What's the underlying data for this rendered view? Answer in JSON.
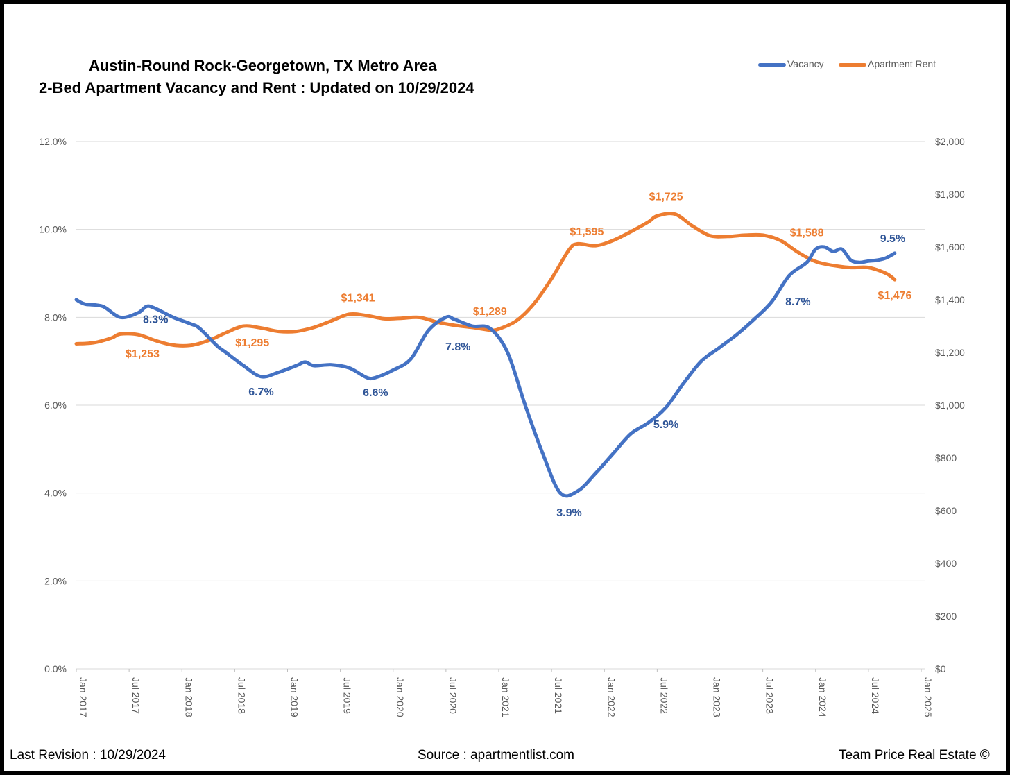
{
  "header": {
    "title_line1": "Austin-Round Rock-Georgetown, TX Metro Area",
    "title_line2": "2-Bed Apartment Vacancy and Rent : Updated on 10/29/2024"
  },
  "footer": {
    "left": "Last Revision : 10/29/2024",
    "center": "Source : apartmentlist.com",
    "right": "Team Price Real Estate ©"
  },
  "colors": {
    "vacancy": "#4472C4",
    "rent": "#ED7D31",
    "vacancy_label": "#2F5597",
    "rent_label": "#ED7D31",
    "axis_text": "#595959",
    "grid": "#D9D9D9"
  },
  "chart_data": {
    "type": "line",
    "legend_position": "top-right",
    "grid": true,
    "x_tick_labels": [
      "Jan 2017",
      "Jul 2017",
      "Jan 2018",
      "Jul 2018",
      "Jan 2019",
      "Jul 2019",
      "Jan 2020",
      "Jul 2020",
      "Jan 2021",
      "Jul 2021",
      "Jan 2022",
      "Jul 2022",
      "Jan 2023",
      "Jul 2023",
      "Jan 2024",
      "Jul 2024",
      "Jan 2025"
    ],
    "y_left": {
      "min": 0,
      "max": 12,
      "tick_labels": [
        "0.0%",
        "2.0%",
        "4.0%",
        "6.0%",
        "8.0%",
        "10.0%",
        "12.0%"
      ]
    },
    "y_right": {
      "min": 0,
      "max": 2000,
      "tick_labels": [
        "$0",
        "$200",
        "$400",
        "$600",
        "$800",
        "$1,000",
        "$1,200",
        "$1,400",
        "$1,600",
        "$1,800",
        "$2,000"
      ]
    },
    "series": [
      {
        "name": "Vacancy",
        "axis": "left",
        "points": [
          [
            "2017-01",
            8.4
          ],
          [
            "2017-02",
            8.3
          ],
          [
            "2017-04",
            8.25
          ],
          [
            "2017-06",
            8.0
          ],
          [
            "2017-08",
            8.1
          ],
          [
            "2017-09",
            8.25
          ],
          [
            "2017-10",
            8.2
          ],
          [
            "2017-12",
            8.0
          ],
          [
            "2018-02",
            7.85
          ],
          [
            "2018-03",
            7.75
          ],
          [
            "2018-05",
            7.35
          ],
          [
            "2018-06",
            7.2
          ],
          [
            "2018-08",
            6.9
          ],
          [
            "2018-10",
            6.65
          ],
          [
            "2018-12",
            6.75
          ],
          [
            "2019-02",
            6.9
          ],
          [
            "2019-03",
            6.98
          ],
          [
            "2019-04",
            6.9
          ],
          [
            "2019-06",
            6.92
          ],
          [
            "2019-08",
            6.85
          ],
          [
            "2019-10",
            6.63
          ],
          [
            "2019-11",
            6.63
          ],
          [
            "2020-01",
            6.8
          ],
          [
            "2020-03",
            7.05
          ],
          [
            "2020-05",
            7.7
          ],
          [
            "2020-07",
            8.0
          ],
          [
            "2020-08",
            7.95
          ],
          [
            "2020-10",
            7.8
          ],
          [
            "2020-12",
            7.75
          ],
          [
            "2021-02",
            7.2
          ],
          [
            "2021-04",
            6.0
          ],
          [
            "2021-06",
            4.9
          ],
          [
            "2021-08",
            4.0
          ],
          [
            "2021-10",
            4.05
          ],
          [
            "2021-12",
            4.45
          ],
          [
            "2022-02",
            4.9
          ],
          [
            "2022-04",
            5.35
          ],
          [
            "2022-06",
            5.6
          ],
          [
            "2022-08",
            5.95
          ],
          [
            "2022-10",
            6.5
          ],
          [
            "2022-12",
            7.0
          ],
          [
            "2023-02",
            7.3
          ],
          [
            "2023-04",
            7.6
          ],
          [
            "2023-06",
            7.95
          ],
          [
            "2023-08",
            8.35
          ],
          [
            "2023-10",
            8.95
          ],
          [
            "2023-12",
            9.25
          ],
          [
            "2024-01",
            9.55
          ],
          [
            "2024-02",
            9.6
          ],
          [
            "2024-03",
            9.5
          ],
          [
            "2024-04",
            9.55
          ],
          [
            "2024-05",
            9.3
          ],
          [
            "2024-06",
            9.25
          ],
          [
            "2024-07",
            9.28
          ],
          [
            "2024-08",
            9.3
          ],
          [
            "2024-09",
            9.35
          ],
          [
            "2024-10",
            9.46
          ]
        ],
        "labels": [
          {
            "x": "2017-10",
            "y": 8.3,
            "text": "8.3%"
          },
          {
            "x": "2018-10",
            "y": 6.65,
            "text": "6.7%"
          },
          {
            "x": "2019-11",
            "y": 6.63,
            "text": "6.6%"
          },
          {
            "x": "2020-09",
            "y": 7.85,
            "text": "7.8%"
          },
          {
            "x": "2021-09",
            "y": 3.95,
            "text": "3.9%"
          },
          {
            "x": "2022-08",
            "y": 5.95,
            "text": "5.9%"
          },
          {
            "x": "2023-11",
            "y": 8.7,
            "text": "8.7%"
          },
          {
            "x": "2024-10",
            "y": 9.46,
            "text": "9.5%"
          }
        ]
      },
      {
        "name": "Apartment Rent",
        "axis": "right",
        "points": [
          [
            "2017-01",
            1233
          ],
          [
            "2017-03",
            1237
          ],
          [
            "2017-05",
            1255
          ],
          [
            "2017-06",
            1270
          ],
          [
            "2017-08",
            1268
          ],
          [
            "2017-10",
            1245
          ],
          [
            "2017-12",
            1228
          ],
          [
            "2018-02",
            1227
          ],
          [
            "2018-04",
            1245
          ],
          [
            "2018-06",
            1275
          ],
          [
            "2018-08",
            1300
          ],
          [
            "2018-10",
            1293
          ],
          [
            "2018-12",
            1280
          ],
          [
            "2019-02",
            1280
          ],
          [
            "2019-04",
            1295
          ],
          [
            "2019-06",
            1320
          ],
          [
            "2019-08",
            1345
          ],
          [
            "2019-10",
            1340
          ],
          [
            "2019-12",
            1328
          ],
          [
            "2020-02",
            1330
          ],
          [
            "2020-04",
            1333
          ],
          [
            "2020-06",
            1315
          ],
          [
            "2020-08",
            1303
          ],
          [
            "2020-10",
            1295
          ],
          [
            "2020-12",
            1285
          ],
          [
            "2021-01",
            1289
          ],
          [
            "2021-03",
            1320
          ],
          [
            "2021-05",
            1385
          ],
          [
            "2021-07",
            1480
          ],
          [
            "2021-09",
            1590
          ],
          [
            "2021-10",
            1612
          ],
          [
            "2021-12",
            1605
          ],
          [
            "2022-02",
            1625
          ],
          [
            "2022-04",
            1658
          ],
          [
            "2022-06",
            1695
          ],
          [
            "2022-07",
            1718
          ],
          [
            "2022-09",
            1725
          ],
          [
            "2022-11",
            1680
          ],
          [
            "2023-01",
            1643
          ],
          [
            "2023-03",
            1640
          ],
          [
            "2023-05",
            1645
          ],
          [
            "2023-07",
            1645
          ],
          [
            "2023-09",
            1625
          ],
          [
            "2023-11",
            1580
          ],
          [
            "2024-01",
            1545
          ],
          [
            "2024-03",
            1530
          ],
          [
            "2024-05",
            1522
          ],
          [
            "2024-07",
            1522
          ],
          [
            "2024-09",
            1500
          ],
          [
            "2024-10",
            1476
          ]
        ],
        "labels": [
          {
            "x": "2017-09",
            "y": 1253,
            "text": "$1,253"
          },
          {
            "x": "2018-09",
            "y": 1295,
            "text": "$1,295"
          },
          {
            "x": "2019-09",
            "y": 1341,
            "text": "$1,341"
          },
          {
            "x": "2020-12",
            "y": 1289,
            "text": "$1,289"
          },
          {
            "x": "2021-11",
            "y": 1595,
            "text": "$1,595"
          },
          {
            "x": "2022-08",
            "y": 1725,
            "text": "$1,725"
          },
          {
            "x": "2023-12",
            "y": 1588,
            "text": "$1,588"
          },
          {
            "x": "2024-10",
            "y": 1476,
            "text": "$1,476"
          }
        ]
      }
    ]
  }
}
